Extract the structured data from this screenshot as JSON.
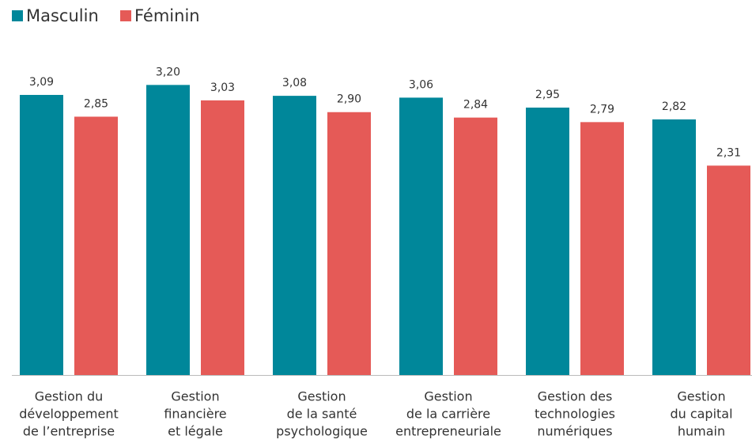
{
  "chart_data": {
    "type": "bar",
    "categories": [
      [
        "Gestion du",
        "développement",
        "de l’entreprise"
      ],
      [
        "Gestion",
        "financière",
        "et légale"
      ],
      [
        "Gestion",
        "de la santé",
        "psychologique"
      ],
      [
        "Gestion",
        "de la carrière",
        "entrepreneuriale"
      ],
      [
        "Gestion des",
        "technologies",
        "numériques"
      ],
      [
        "Gestion",
        "du capital",
        "humain"
      ]
    ],
    "series": [
      {
        "name": "Masculin",
        "color": "#00879a",
        "values": [
          3.09,
          3.2,
          3.08,
          3.06,
          2.95,
          2.82
        ],
        "value_labels": [
          "3,09",
          "3,20",
          "3,08",
          "3,06",
          "2,95",
          "2,82"
        ]
      },
      {
        "name": "Féminin",
        "color": "#e55a57",
        "values": [
          2.85,
          3.03,
          2.9,
          2.84,
          2.79,
          2.31
        ],
        "value_labels": [
          "2,85",
          "3,03",
          "2,90",
          "2,84",
          "2,79",
          "2,31"
        ]
      }
    ],
    "ylim": [
      0,
      3.5
    ],
    "legend": "top-left"
  }
}
